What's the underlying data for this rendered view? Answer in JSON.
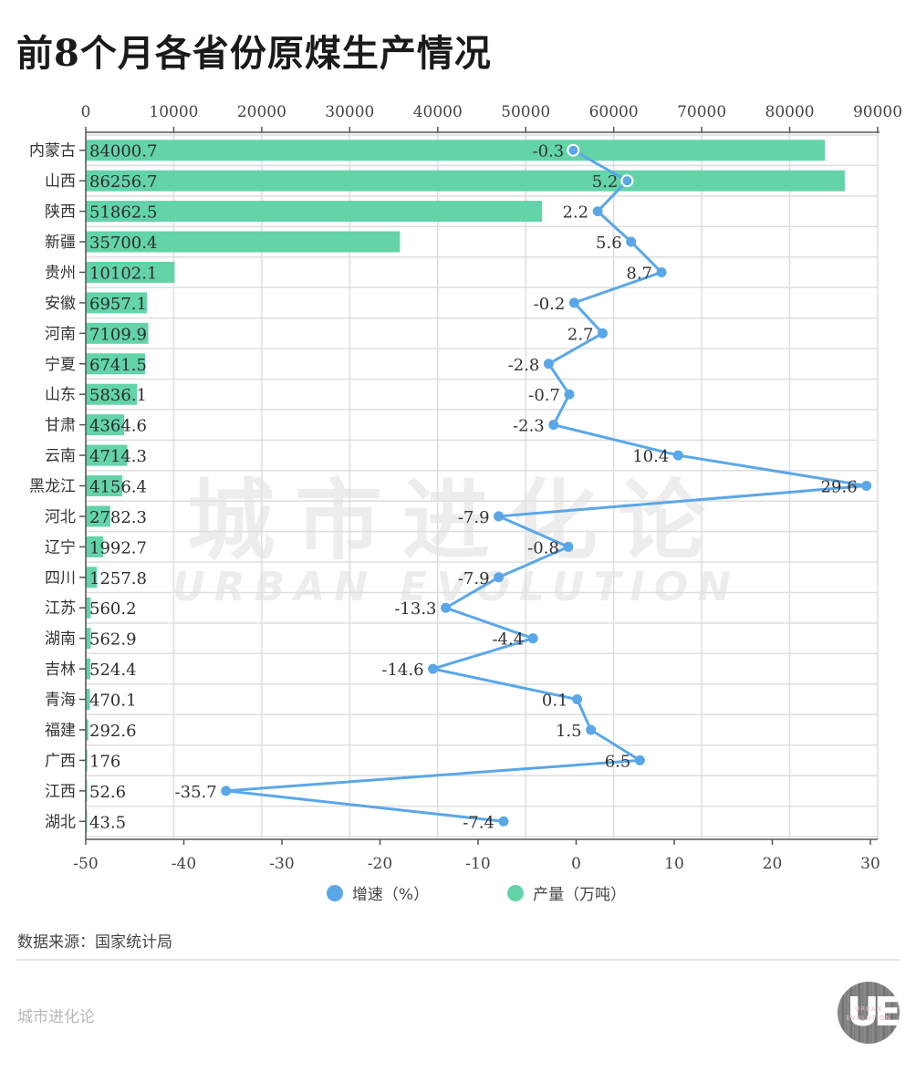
{
  "title": "前8个月各省份原煤生产情况",
  "source": "数据来源：国家统计局",
  "brand": "城市进化论",
  "watermark": {
    "cn": "城市进化论",
    "en": "URBAN EVOLUTION"
  },
  "logo": {
    "letters": "UE",
    "line1": "URBAN",
    "line2": "EVOLUTION"
  },
  "legend": [
    {
      "label": "增速（%）",
      "color": "#5aa7e8"
    },
    {
      "label": "产量（万吨）",
      "color": "#63d3a8"
    }
  ],
  "colors": {
    "bar": "#63d3a8",
    "line": "#5aa7e8",
    "grid": "#dedede",
    "axis": "#555555"
  },
  "chart_data": {
    "type": "bar+line",
    "title": "前8个月各省份原煤生产情况",
    "orientation": "horizontal",
    "categories": [
      "内蒙古",
      "山西",
      "陕西",
      "新疆",
      "贵州",
      "安徽",
      "河南",
      "宁夏",
      "山东",
      "甘肃",
      "云南",
      "黑龙江",
      "河北",
      "辽宁",
      "四川",
      "江苏",
      "湖南",
      "吉林",
      "青海",
      "福建",
      "广西",
      "江西",
      "湖北"
    ],
    "series": [
      {
        "name": "产量（万吨）",
        "type": "bar",
        "axis": "top",
        "values": [
          84000.7,
          86256.7,
          51862.5,
          35700.4,
          10102.1,
          6957.1,
          7109.9,
          6741.5,
          5836.1,
          4364.6,
          4714.3,
          4156.4,
          2782.3,
          1992.7,
          1257.8,
          560.2,
          562.9,
          524.4,
          470.1,
          292.6,
          176,
          52.6,
          43.5
        ]
      },
      {
        "name": "增速（%）",
        "type": "line",
        "axis": "bottom",
        "values": [
          -0.3,
          5.2,
          2.2,
          5.6,
          8.7,
          -0.2,
          2.7,
          -2.8,
          -0.7,
          -2.3,
          10.4,
          29.6,
          -7.9,
          -0.8,
          -7.9,
          -13.3,
          -4.4,
          -14.6,
          0.1,
          1.5,
          6.5,
          -35.7,
          -7.4
        ]
      }
    ],
    "top_axis": {
      "range": [
        0,
        90000
      ],
      "ticks": [
        0,
        10000,
        20000,
        30000,
        40000,
        50000,
        60000,
        70000,
        80000,
        90000
      ]
    },
    "bottom_axis": {
      "range": [
        -50,
        30
      ],
      "ticks": [
        -50,
        -40,
        -30,
        -20,
        -10,
        0,
        10,
        20,
        30
      ]
    },
    "grid": true,
    "legend_position": "bottom"
  }
}
